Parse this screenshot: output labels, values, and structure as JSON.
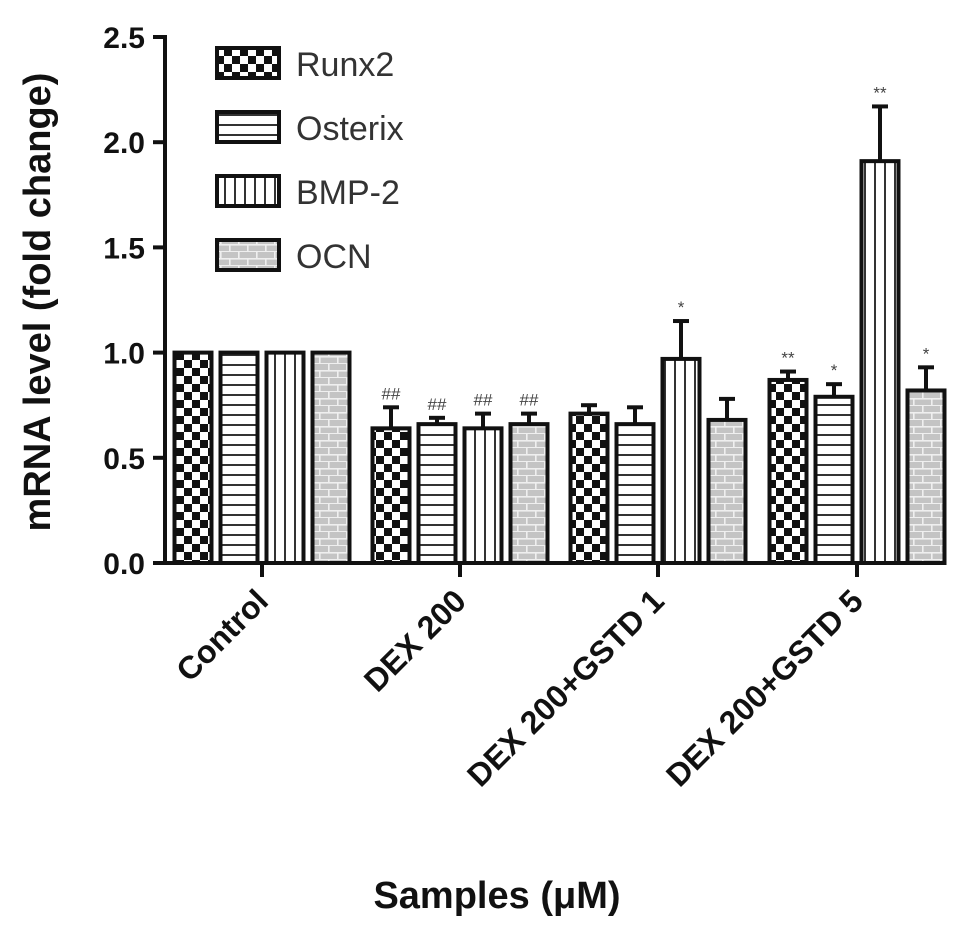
{
  "chart_data": {
    "type": "bar",
    "title": "",
    "xlabel": "Samples (μM)",
    "ylabel": "mRNA level (fold change)",
    "ylim": [
      0,
      2.5
    ],
    "yticks": [
      "0.0",
      "0.5",
      "1.0",
      "1.5",
      "2.0",
      "2.5"
    ],
    "ytick_values": [
      0,
      0.5,
      1.0,
      1.5,
      2.0,
      2.5
    ],
    "categories": [
      "Control",
      "DEX 200",
      "DEX 200+GSTD 1",
      "DEX 200+GSTD 5"
    ],
    "legend_position": "top-left",
    "series": [
      {
        "name": "Runx2",
        "pattern": "checker",
        "values": [
          1.0,
          0.64,
          0.71,
          0.87
        ],
        "errors": [
          0,
          0.1,
          0.04,
          0.04
        ],
        "annotations": [
          "",
          "##",
          "",
          "**"
        ]
      },
      {
        "name": "Osterix",
        "pattern": "horizontal",
        "values": [
          1.0,
          0.66,
          0.66,
          0.79
        ],
        "errors": [
          0,
          0.03,
          0.08,
          0.06
        ],
        "annotations": [
          "",
          "##",
          "",
          "*"
        ]
      },
      {
        "name": "BMP-2",
        "pattern": "vertical",
        "values": [
          1.0,
          0.64,
          0.97,
          1.91
        ],
        "errors": [
          0,
          0.07,
          0.18,
          0.26
        ],
        "annotations": [
          "",
          "##",
          "*",
          "**"
        ]
      },
      {
        "name": "OCN",
        "pattern": "brick",
        "values": [
          1.0,
          0.66,
          0.68,
          0.82
        ],
        "errors": [
          0,
          0.05,
          0.1,
          0.11
        ],
        "annotations": [
          "",
          "##",
          "",
          "*"
        ]
      }
    ]
  }
}
